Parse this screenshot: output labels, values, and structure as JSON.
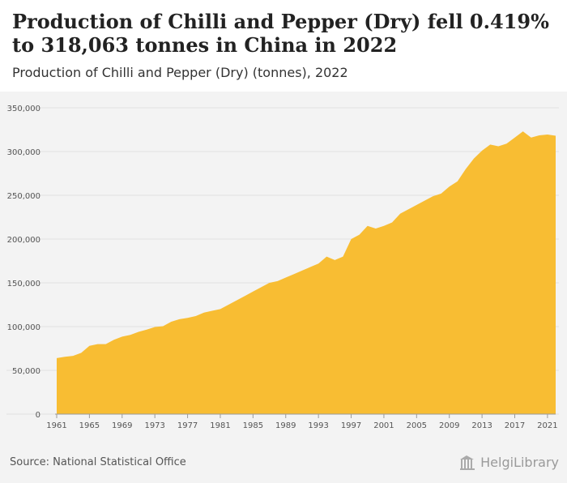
{
  "header": {
    "title": "Production of Chilli and Pepper (Dry) fell 0.419% to 318,063 tonnes in China in 2022",
    "subtitle": "Production of Chilli and Pepper (Dry) (tonnes), 2022"
  },
  "footer": {
    "source": "Source: National Statistical Office",
    "logo_text": "HelgiLibrary"
  },
  "colors": {
    "area_fill": "#f8bd33",
    "grid": "#e2e2e2",
    "axis_text": "#555555"
  },
  "chart_data": {
    "type": "area",
    "x": [
      1961,
      1962,
      1963,
      1964,
      1965,
      1966,
      1967,
      1968,
      1969,
      1970,
      1971,
      1972,
      1973,
      1974,
      1975,
      1976,
      1977,
      1978,
      1979,
      1980,
      1981,
      1982,
      1983,
      1984,
      1985,
      1986,
      1987,
      1988,
      1989,
      1990,
      1991,
      1992,
      1993,
      1994,
      1995,
      1996,
      1997,
      1998,
      1999,
      2000,
      2001,
      2002,
      2003,
      2004,
      2005,
      2006,
      2007,
      2008,
      2009,
      2010,
      2011,
      2012,
      2013,
      2014,
      2015,
      2016,
      2017,
      2018,
      2019,
      2020,
      2021,
      2022
    ],
    "series": [
      {
        "values": [
          64000,
          65500,
          66500,
          70000,
          78000,
          80000,
          80000,
          85000,
          88500,
          90500,
          94000,
          96500,
          99500,
          100500,
          105500,
          108500,
          110000,
          112000,
          116000,
          118000,
          120000,
          125000,
          130000,
          135000,
          140000,
          145000,
          150000,
          152000,
          156000,
          160000,
          164000,
          168000,
          172000,
          180000,
          176000,
          180000,
          200000,
          205000,
          215000,
          212000,
          215000,
          219000,
          229000,
          234000,
          239000,
          244000,
          249000,
          252000,
          260000,
          266000,
          280000,
          292000,
          301000,
          308000,
          306000,
          309000,
          316000,
          323000,
          316000,
          318500,
          319400,
          318063
        ]
      }
    ],
    "xticks": [
      1961,
      1965,
      1969,
      1973,
      1977,
      1981,
      1985,
      1989,
      1993,
      1997,
      2001,
      2005,
      2009,
      2013,
      2017,
      2021
    ],
    "yticks": [
      0,
      50000,
      100000,
      150000,
      200000,
      250000,
      300000,
      350000
    ],
    "ytick_labels": [
      "0",
      "50,000",
      "100,000",
      "150,000",
      "200,000",
      "250,000",
      "300,000",
      "350,000"
    ],
    "ylim": [
      0,
      350000
    ],
    "grid": true
  }
}
